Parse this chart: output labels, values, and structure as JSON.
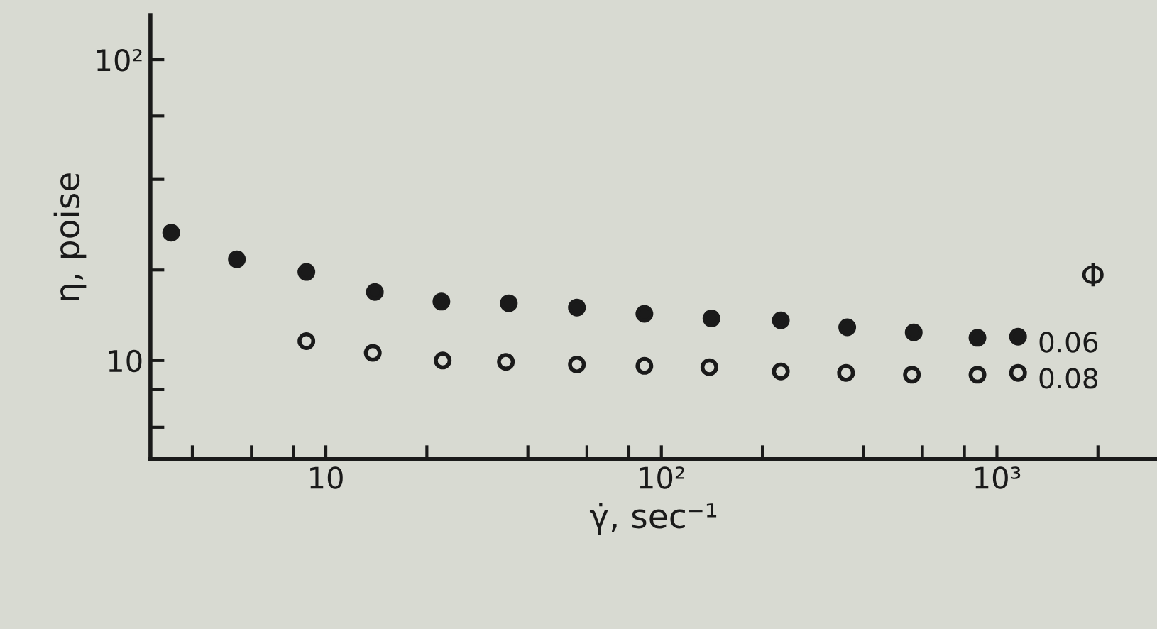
{
  "chart_data": {
    "type": "scatter",
    "xlabel": "γ̇, sec⁻¹",
    "ylabel": "η, poise",
    "legend_title": "Φ",
    "log": "xy",
    "marker": "circle",
    "grid": false,
    "xlim": [
      3,
      3000
    ],
    "ylim": [
      4.7,
      140
    ],
    "xticks": [
      {
        "value": 4,
        "label": null
      },
      {
        "value": 6,
        "label": null
      },
      {
        "value": 8,
        "label": null
      },
      {
        "value": 10,
        "label": "10"
      },
      {
        "value": 20,
        "label": null
      },
      {
        "value": 40,
        "label": null
      },
      {
        "value": 60,
        "label": null
      },
      {
        "value": 80,
        "label": null
      },
      {
        "value": 100,
        "label": "10²"
      },
      {
        "value": 200,
        "label": null
      },
      {
        "value": 400,
        "label": null
      },
      {
        "value": 600,
        "label": null
      },
      {
        "value": 800,
        "label": null
      },
      {
        "value": 1000,
        "label": "10³"
      },
      {
        "value": 2000,
        "label": null
      }
    ],
    "yticks": [
      {
        "value": 6,
        "label": null
      },
      {
        "value": 8,
        "label": null
      },
      {
        "value": 10,
        "label": "10"
      },
      {
        "value": 20,
        "label": null
      },
      {
        "value": 40,
        "label": null
      },
      {
        "value": 65,
        "label": null
      },
      {
        "value": 100,
        "label": "10²"
      }
    ],
    "series": [
      {
        "name": "0.06",
        "color": "#1a1a1a",
        "x": [
          3.46,
          5.43,
          8.75,
          14.0,
          22.1,
          35.1,
          56,
          89,
          141,
          227,
          358,
          565,
          875,
          1156
        ],
        "values": [
          26.6,
          21.7,
          19.7,
          16.9,
          15.7,
          15.5,
          15.0,
          14.3,
          13.8,
          13.6,
          12.9,
          12.4,
          11.9,
          12.0
        ]
      },
      {
        "name": "0.08",
        "color": "#1a1a1a",
        "x": [
          8.75,
          13.8,
          22.3,
          34.4,
          56,
          89,
          139,
          227,
          355,
          558,
          875,
          1156
        ],
        "values": [
          11.6,
          10.6,
          10.0,
          9.9,
          9.7,
          9.6,
          9.5,
          9.2,
          9.1,
          8.97,
          8.97,
          9.1
        ]
      }
    ]
  }
}
